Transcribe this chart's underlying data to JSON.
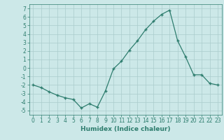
{
  "x": [
    0,
    1,
    2,
    3,
    4,
    5,
    6,
    7,
    8,
    9,
    10,
    11,
    12,
    13,
    14,
    15,
    16,
    17,
    18,
    19,
    20,
    21,
    22,
    23
  ],
  "y": [
    -2.0,
    -2.3,
    -2.8,
    -3.2,
    -3.5,
    -3.7,
    -4.7,
    -4.2,
    -4.6,
    -2.7,
    -0.1,
    0.8,
    2.1,
    3.2,
    4.5,
    5.5,
    6.3,
    6.8,
    3.2,
    1.3,
    -0.8,
    -0.8,
    -1.8,
    -2.0
  ],
  "xlim": [
    -0.5,
    23.5
  ],
  "ylim": [
    -5.5,
    7.5
  ],
  "yticks": [
    -5,
    -4,
    -3,
    -2,
    -1,
    0,
    1,
    2,
    3,
    4,
    5,
    6,
    7
  ],
  "xticks": [
    0,
    1,
    2,
    3,
    4,
    5,
    6,
    7,
    8,
    9,
    10,
    11,
    12,
    13,
    14,
    15,
    16,
    17,
    18,
    19,
    20,
    21,
    22,
    23
  ],
  "xlabel": "Humidex (Indice chaleur)",
  "line_color": "#2e7d6e",
  "marker": "+",
  "bg_color": "#cce8e8",
  "grid_color": "#aacccc",
  "font_color": "#2e7d6e",
  "tick_fontsize": 5.5,
  "xlabel_fontsize": 6.5
}
